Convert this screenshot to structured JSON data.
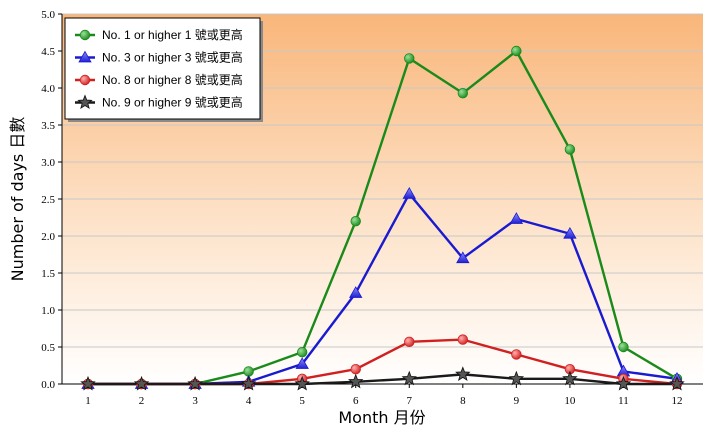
{
  "chart_data": {
    "type": "line",
    "title": "",
    "xlabel": "Month 月份",
    "ylabel": "Number of days 日數",
    "categories": [
      "1",
      "2",
      "3",
      "4",
      "5",
      "6",
      "7",
      "8",
      "9",
      "10",
      "11",
      "12"
    ],
    "ylim": [
      0,
      5.0
    ],
    "yticks": [
      "0.0",
      "0.5",
      "1.0",
      "1.5",
      "2.0",
      "2.5",
      "3.0",
      "3.5",
      "4.0",
      "4.5",
      "5.0"
    ],
    "grid": true,
    "legend_position": "top-left",
    "series": [
      {
        "name": "No. 1 or higher 1 號或更高",
        "color": "#1a8a1a",
        "marker": "circle",
        "values": [
          0,
          0,
          0,
          0.17,
          0.43,
          2.2,
          4.4,
          3.93,
          4.5,
          3.17,
          0.5,
          0.07
        ]
      },
      {
        "name": "No. 3 or higher 3 號或更高",
        "color": "#1a1ad0",
        "marker": "triangle",
        "values": [
          0,
          0,
          0,
          0.03,
          0.27,
          1.23,
          2.57,
          1.7,
          2.23,
          2.03,
          0.17,
          0.07
        ]
      },
      {
        "name": "No. 8 or higher 8 號或更高",
        "color": "#d02020",
        "marker": "circle",
        "values": [
          0,
          0,
          0,
          0,
          0.07,
          0.2,
          0.57,
          0.6,
          0.4,
          0.2,
          0.07,
          0
        ]
      },
      {
        "name": "No. 9 or higher 9 號或更高",
        "color": "#1a1a1a",
        "marker": "star",
        "values": [
          0,
          0,
          0,
          0,
          0,
          0.03,
          0.07,
          0.13,
          0.07,
          0.07,
          0,
          0
        ]
      }
    ]
  }
}
